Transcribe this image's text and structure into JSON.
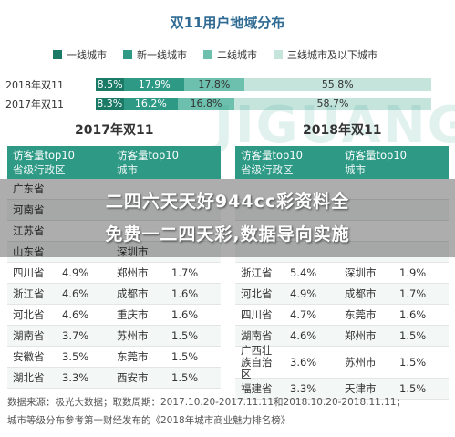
{
  "chart_data": [
    {
      "type": "bar",
      "title": "双11用户地域分布",
      "categories": [
        "2018年双11",
        "2017年双11"
      ],
      "series": [
        {
          "name": "一线城市",
          "values": [
            8.5,
            8.3
          ],
          "labels": [
            "8.5%",
            "8.3%"
          ],
          "color": "#1a7a66"
        },
        {
          "name": "新一线城市",
          "values": [
            17.9,
            16.2
          ],
          "labels": [
            "17.9%",
            "16.2%"
          ],
          "color": "#2e9a86"
        },
        {
          "name": "二线城市",
          "values": [
            17.8,
            16.8
          ],
          "labels": [
            "17.8%",
            "16.8%"
          ],
          "color": "#6cc0ad"
        },
        {
          "name": "三线城市及以下城市",
          "values": [
            55.8,
            58.7
          ],
          "labels": [
            "55.8%",
            "58.7%"
          ],
          "color": "#c4e4dc"
        }
      ]
    },
    {
      "type": "table",
      "title": "2017年双11",
      "headers": [
        {
          "l1": "访客量top10",
          "l2": "省级行政区"
        },
        {
          "l1": "",
          "l2": ""
        },
        {
          "l1": "访客量top10",
          "l2": "城市"
        },
        {
          "l1": "",
          "l2": ""
        }
      ],
      "rows": [
        [
          "广东省",
          "",
          "",
          ""
        ],
        [
          "河南省",
          "",
          "",
          ""
        ],
        [
          "江苏省",
          "",
          "",
          ""
        ],
        [
          "山东省",
          "",
          "深圳市",
          ""
        ],
        [
          "四川省",
          "4.9%",
          "郑州市",
          "1.7%"
        ],
        [
          "浙江省",
          "4.6%",
          "成都市",
          "1.6%"
        ],
        [
          "河北省",
          "4.6%",
          "重庆市",
          "1.6%"
        ],
        [
          "湖南省",
          "3.7%",
          "苏州市",
          "1.5%"
        ],
        [
          "安徽省",
          "3.5%",
          "东莞市",
          "1.5%"
        ],
        [
          "湖北省",
          "3.3%",
          "西安市",
          "1.5%"
        ]
      ]
    },
    {
      "type": "table",
      "title": "2018年双11",
      "headers": [
        {
          "l1": "访客量top10",
          "l2": "省级行政区"
        },
        {
          "l1": "",
          "l2": ""
        },
        {
          "l1": "访客量top10",
          "l2": "城市"
        },
        {
          "l1": "",
          "l2": ""
        }
      ],
      "rows": [
        [
          "",
          "",
          "",
          ""
        ],
        [
          "",
          "",
          "",
          ""
        ],
        [
          "",
          "",
          "",
          ""
        ],
        [
          "",
          "",
          "",
          ""
        ],
        [
          "浙江省",
          "5.4%",
          "深圳市",
          "1.9%"
        ],
        [
          "河北省",
          "4.9%",
          "成都市",
          "1.7%"
        ],
        [
          "四川省",
          "4.7%",
          "东莞市",
          "1.6%"
        ],
        [
          "湖南省",
          "4.6%",
          "郑州市",
          "1.5%"
        ],
        [
          "广西壮族自治区",
          "3.6%",
          "苏州市",
          "1.5%"
        ],
        [
          "福建省",
          "3.3%",
          "天津市",
          "1.5%"
        ]
      ]
    }
  ],
  "watermark": "JIGUANG",
  "overlay": {
    "line1": "二四六天天好944cc彩资料全",
    "line2": "免费一二四天彩,数据导向实施"
  },
  "footer": {
    "line1": "数据来源：极光大数据；取数周期：2017.10.20-2017.11.11和2018.10.20-2018.11.11；",
    "line2": "城市等级分布参考第一财经发布的《2018年城市商业魅力排名榜》"
  }
}
